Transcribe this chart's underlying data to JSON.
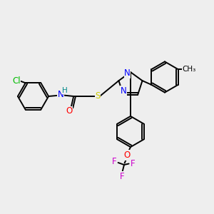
{
  "bg_color": "#eeeeee",
  "bond_color": "#000000",
  "atom_colors": {
    "Cl": "#00bb00",
    "N": "#0000ff",
    "H": "#008888",
    "O": "#ff0000",
    "S": "#cccc00",
    "F": "#cc00cc"
  },
  "lw": 1.4,
  "fs": 8.5,
  "fs_small": 7.5,
  "xlim": [
    0,
    10
  ],
  "ylim": [
    0,
    10
  ],
  "ring_r": 0.72,
  "imid_r": 0.58
}
